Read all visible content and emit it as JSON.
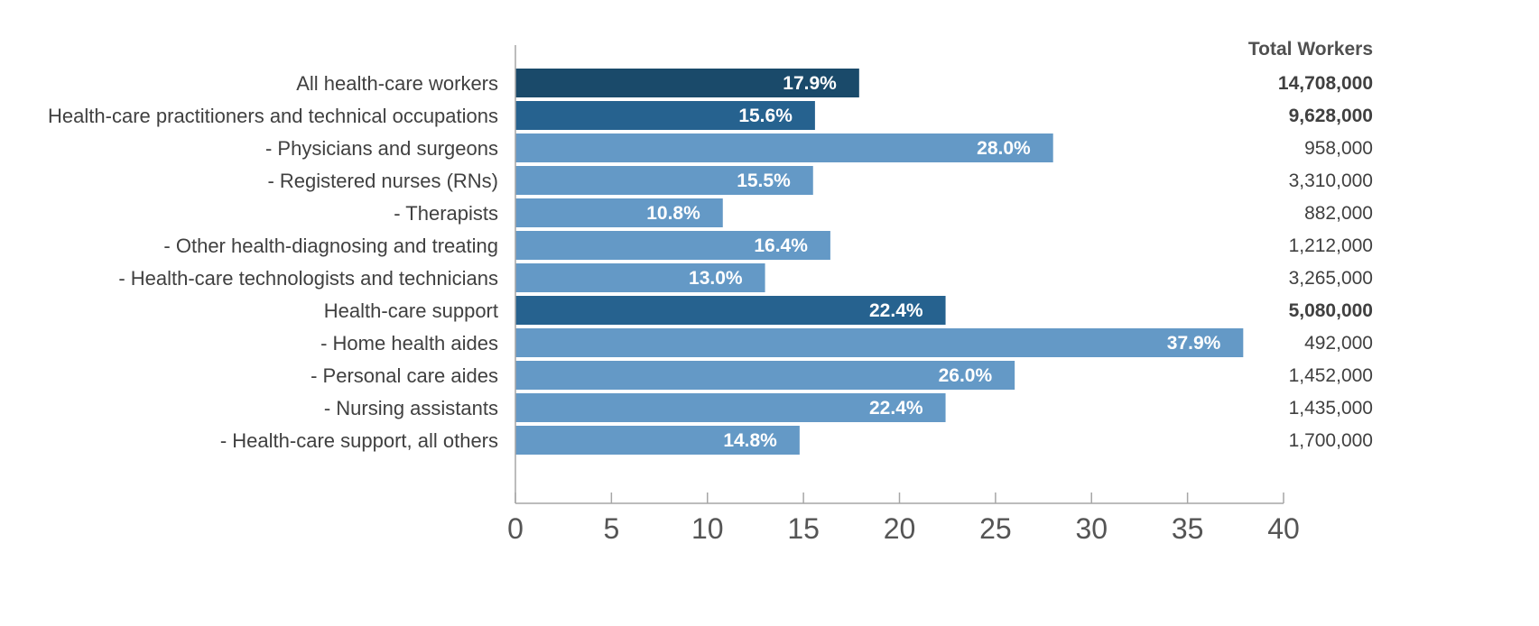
{
  "chart_data": {
    "type": "bar",
    "orientation": "horizontal",
    "title": "",
    "xlabel": "",
    "ylabel": "",
    "xlim": [
      0,
      40
    ],
    "x_ticks": [
      0,
      5,
      10,
      15,
      20,
      25,
      30,
      35,
      40
    ],
    "grid": false,
    "value_suffix": "%",
    "total_header": "Total Workers",
    "colors": {
      "dark": "#1a4a6a",
      "medium": "#26628f",
      "light": "#6499c6"
    },
    "categories": [
      "All health-care workers",
      "Health-care practitioners and technical occupations",
      "- Physicians and surgeons",
      "- Registered nurses (RNs)",
      "- Therapists",
      "- Other health-diagnosing and treating",
      "- Health-care technologists and technicians",
      "Health-care support",
      "- Home health aides",
      "- Personal care aides",
      "- Nursing assistants",
      "- Health-care support, all others"
    ],
    "values": [
      17.9,
      15.6,
      28.0,
      15.5,
      10.8,
      16.4,
      13.0,
      22.4,
      37.9,
      26.0,
      22.4,
      14.8
    ],
    "value_labels": [
      "17.9%",
      "15.6%",
      "28.0%",
      "15.5%",
      "10.8%",
      "16.4%",
      "13.0%",
      "22.4%",
      "37.9%",
      "26.0%",
      "22.4%",
      "14.8%"
    ],
    "bar_shade": [
      "dark",
      "medium",
      "light",
      "light",
      "light",
      "light",
      "light",
      "medium",
      "light",
      "light",
      "light",
      "light"
    ],
    "total_workers": [
      "14,708,000",
      "9,628,000",
      "958,000",
      "3,310,000",
      "882,000",
      "1,212,000",
      "3,265,000",
      "5,080,000",
      "492,000",
      "1,452,000",
      "1,435,000",
      "1,700,000"
    ],
    "total_bold": [
      true,
      true,
      false,
      false,
      false,
      false,
      false,
      true,
      false,
      false,
      false,
      false
    ]
  }
}
